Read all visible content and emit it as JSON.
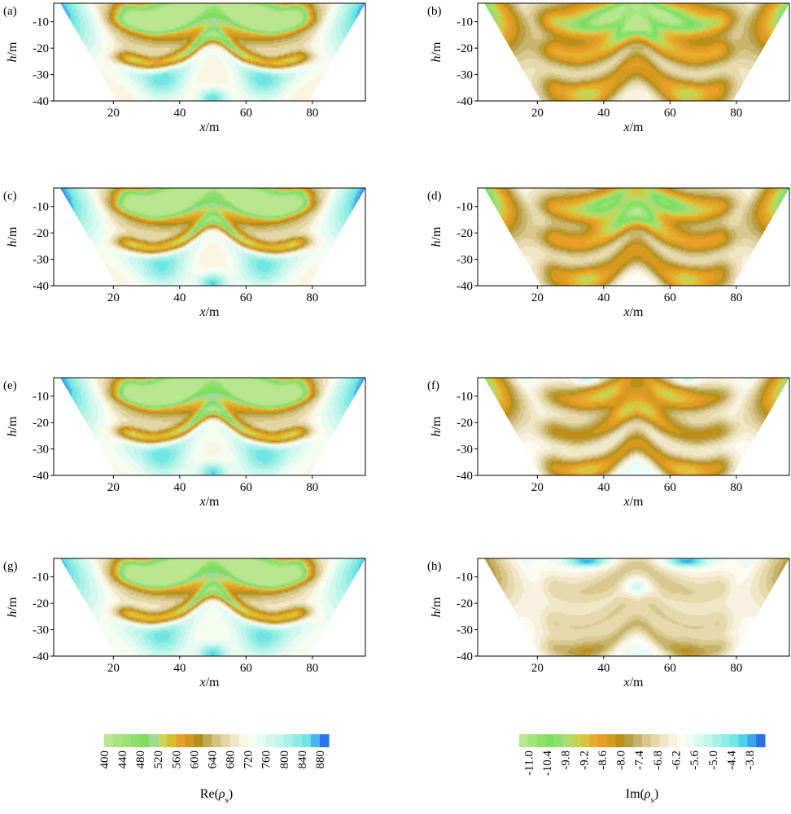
{
  "colors": {
    "re_scale": [
      "#b8e58e",
      "#a8e482",
      "#98e276",
      "#8cdf6a",
      "#7fdd60",
      "#9ed99a",
      "#c9d55e",
      "#d9be2a",
      "#e7a02a",
      "#cf9a1c",
      "#b58f1c",
      "#c2aa54",
      "#d4c27f",
      "#e3d6a4",
      "#f0e7c8",
      "#fbf6e3",
      "#f5fdf0",
      "#e6fbf2",
      "#d2f8ee",
      "#bff5ea",
      "#a8f1e6",
      "#8eece3",
      "#70e5e4",
      "#48b6f2",
      "#2b74ea"
    ],
    "im_scale": [
      "#b9e58f",
      "#a4e47e",
      "#8fe16c",
      "#7ddf5f",
      "#90df72",
      "#b0da6e",
      "#c6d352",
      "#dbc23a",
      "#e2ae2c",
      "#e79d26",
      "#d49a1f",
      "#bd8f18",
      "#b99f44",
      "#c8b36a",
      "#d8c78e",
      "#e5d8ab",
      "#efe6c6",
      "#f8f1df",
      "#fcfbf0",
      "#eafcf3",
      "#d6f9ef",
      "#c1f6ea",
      "#a9f2e6",
      "#8eede3",
      "#6fe6e4",
      "#4ed3ea",
      "#3aa7ec",
      "#2a6fe8"
    ]
  },
  "chart_data": [
    {
      "panel": "(a)",
      "type": "heatmap",
      "quantity": "re",
      "xlabel": "x/m",
      "ylabel": "h/m",
      "xlim": [
        2,
        96
      ],
      "ylim": [
        -40,
        -3
      ],
      "xticks": [
        20,
        40,
        60,
        80
      ],
      "yticks": [
        -10,
        -20,
        -30,
        -40
      ],
      "grid": false,
      "field": {
        "base": 705,
        "edge_value": 880,
        "bands": [
          [
            -205,
            -5,
            2.5
          ],
          [
            -215,
            -9,
            2
          ],
          [
            -35,
            -14,
            3.5
          ],
          [
            -220,
            -23,
            2
          ],
          [
            60,
            -26,
            4
          ]
        ],
        "slab": [
          -185,
          -7,
          13,
          7
        ],
        "pockets": [
          [
            115,
            35,
            -33,
            5,
            5
          ],
          [
            115,
            65,
            -33,
            5,
            5
          ],
          [
            150,
            50,
            -39,
            3,
            2.5
          ]
        ],
        "lobes": [
          [
            -60,
            35,
            -4,
            3.5,
            1.5
          ],
          [
            -60,
            65,
            -4,
            3.5,
            1.5
          ]
        ]
      }
    },
    {
      "panel": "(b)",
      "type": "heatmap",
      "quantity": "im",
      "xlabel": "x/m",
      "ylabel": "h/m",
      "xlim": [
        2,
        96
      ],
      "ylim": [
        -40,
        -3
      ],
      "xticks": [
        20,
        40,
        60,
        80
      ],
      "yticks": [
        -10,
        -20,
        -30,
        -40
      ],
      "grid": false,
      "field": {
        "base": -6.3,
        "edge_value": -10.2,
        "bands": [
          [
            -1.8,
            -9,
            3
          ],
          [
            -2.4,
            -20,
            3.5
          ],
          [
            -1.9,
            -33,
            3
          ],
          [
            -1.2,
            -38,
            2.5
          ]
        ],
        "slab": [
          -3.4,
          -8,
          14,
          6
        ],
        "pockets": [
          [
            -1.2,
            35,
            -38,
            4,
            3
          ],
          [
            -1.2,
            65,
            -38,
            4,
            3
          ]
        ],
        "lobes": [
          [
            -0.8,
            50,
            -4,
            2,
            2
          ]
        ]
      }
    },
    {
      "panel": "(c)",
      "type": "heatmap",
      "quantity": "re",
      "xlabel": "x/m",
      "ylabel": "h/m",
      "xlim": [
        2,
        96
      ],
      "ylim": [
        -40,
        -3
      ],
      "xticks": [
        20,
        40,
        60,
        80
      ],
      "yticks": [
        -10,
        -20,
        -30,
        -40
      ],
      "grid": false,
      "field": {
        "base": 710,
        "edge_value": 890,
        "bands": [
          [
            -210,
            -5,
            2.5
          ],
          [
            -215,
            -9,
            2
          ],
          [
            -35,
            -14,
            3.5
          ],
          [
            -220,
            -23,
            2
          ],
          [
            60,
            -26,
            4
          ]
        ],
        "slab": [
          -190,
          -7,
          13,
          7
        ],
        "pockets": [
          [
            110,
            35,
            -34,
            5,
            5
          ],
          [
            110,
            65,
            -34,
            5,
            5
          ],
          [
            150,
            50,
            -39,
            3,
            2.5
          ]
        ],
        "lobes": [
          [
            -60,
            35,
            -4,
            3.5,
            1.5
          ],
          [
            -60,
            65,
            -4,
            3.5,
            1.5
          ]
        ]
      }
    },
    {
      "panel": "(d)",
      "type": "heatmap",
      "quantity": "im",
      "xlabel": "x/m",
      "ylabel": "h/m",
      "xlim": [
        2,
        96
      ],
      "ylim": [
        -40,
        -3
      ],
      "xticks": [
        20,
        40,
        60,
        80
      ],
      "yticks": [
        -10,
        -20,
        -30,
        -40
      ],
      "grid": false,
      "field": {
        "base": -6.0,
        "edge_value": -10.4,
        "bands": [
          [
            -1.6,
            -9,
            3
          ],
          [
            -2.6,
            -21,
            3.5
          ],
          [
            -2.0,
            -33,
            3
          ],
          [
            -1.4,
            -38,
            2.5
          ]
        ],
        "slab": [
          -3.0,
          -9,
          14,
          6
        ],
        "pockets": [
          [
            -0.8,
            40,
            -16,
            3,
            3
          ],
          [
            -1.2,
            35,
            -38,
            4,
            3
          ],
          [
            -1.2,
            65,
            -38,
            4,
            3
          ]
        ],
        "lobes": [
          [
            0.5,
            35,
            -4,
            3,
            1.5
          ],
          [
            0.5,
            65,
            -4,
            3,
            1.5
          ]
        ]
      }
    },
    {
      "panel": "(e)",
      "type": "heatmap",
      "quantity": "re",
      "xlabel": "x/m",
      "ylabel": "h/m",
      "xlim": [
        2,
        96
      ],
      "ylim": [
        -40,
        -3
      ],
      "xticks": [
        20,
        40,
        60,
        80
      ],
      "yticks": [
        -10,
        -20,
        -30,
        -40
      ],
      "grid": false,
      "field": {
        "base": 715,
        "edge_value": 885,
        "bands": [
          [
            -215,
            -5,
            2.5
          ],
          [
            -215,
            -9,
            2
          ],
          [
            -35,
            -14,
            3.5
          ],
          [
            -215,
            -23,
            2
          ],
          [
            55,
            -27,
            4
          ]
        ],
        "slab": [
          -195,
          -7,
          13,
          7
        ],
        "pockets": [
          [
            105,
            35,
            -34,
            5,
            5
          ],
          [
            105,
            65,
            -34,
            5,
            5
          ],
          [
            145,
            50,
            -39,
            3,
            2.5
          ]
        ],
        "lobes": [
          [
            -60,
            35,
            -4,
            3.5,
            1.5
          ],
          [
            -60,
            65,
            -4,
            3.5,
            1.5
          ]
        ]
      }
    },
    {
      "panel": "(f)",
      "type": "heatmap",
      "quantity": "im",
      "xlabel": "x/m",
      "ylabel": "h/m",
      "xlim": [
        2,
        96
      ],
      "ylim": [
        -40,
        -3
      ],
      "xticks": [
        20,
        40,
        60,
        80
      ],
      "yticks": [
        -10,
        -20,
        -30,
        -40
      ],
      "grid": false,
      "field": {
        "base": -5.6,
        "edge_value": -10.0,
        "bands": [
          [
            -1.4,
            -9,
            3
          ],
          [
            -2.4,
            -22,
            3.5
          ],
          [
            -2.1,
            -34,
            3
          ],
          [
            -1.4,
            -38,
            2.5
          ]
        ],
        "slab": [
          -2.5,
          -10,
          14,
          6
        ],
        "pockets": [
          [
            1.0,
            50,
            -12,
            3,
            2.5
          ],
          [
            -1.0,
            35,
            -38,
            4,
            3
          ],
          [
            -1.0,
            65,
            -38,
            4,
            3
          ]
        ],
        "lobes": [
          [
            1.4,
            35,
            -4,
            3,
            1.5
          ],
          [
            1.4,
            65,
            -4,
            3,
            1.5
          ]
        ]
      }
    },
    {
      "panel": "(g)",
      "type": "heatmap",
      "quantity": "re",
      "xlabel": "x/m",
      "ylabel": "h/m",
      "xlim": [
        2,
        96
      ],
      "ylim": [
        -40,
        -3
      ],
      "xticks": [
        20,
        40,
        60,
        80
      ],
      "yticks": [
        -10,
        -20,
        -30,
        -40
      ],
      "grid": false,
      "field": {
        "base": 720,
        "edge_value": 870,
        "bands": [
          [
            -220,
            -5,
            2.5
          ],
          [
            -210,
            -9,
            2
          ],
          [
            -30,
            -14,
            3.5
          ],
          [
            -210,
            -23,
            2
          ],
          [
            50,
            -27,
            4
          ]
        ],
        "slab": [
          -200,
          -7,
          13,
          7
        ],
        "pockets": [
          [
            100,
            35,
            -34,
            5,
            5
          ],
          [
            100,
            65,
            -34,
            5,
            5
          ],
          [
            140,
            50,
            -39,
            3,
            2.5
          ]
        ],
        "lobes": [
          [
            -60,
            35,
            -4,
            3.5,
            1.5
          ],
          [
            -60,
            65,
            -4,
            3.5,
            1.5
          ]
        ]
      }
    },
    {
      "panel": "(h)",
      "type": "heatmap",
      "quantity": "im",
      "xlabel": "x/m",
      "ylabel": "h/m",
      "xlim": [
        2,
        96
      ],
      "ylim": [
        -40,
        -3
      ],
      "xticks": [
        20,
        40,
        60,
        80
      ],
      "yticks": [
        -10,
        -20,
        -30,
        -40
      ],
      "grid": false,
      "field": {
        "base": -5.8,
        "edge_value": -7.8,
        "bands": [
          [
            -1.0,
            -13,
            4
          ],
          [
            -1.2,
            -26,
            5
          ],
          [
            -1.4,
            -36,
            3
          ]
        ],
        "slab": [
          -0.4,
          -10,
          14,
          6
        ],
        "pockets": [
          [
            1.6,
            50,
            -14,
            3,
            3
          ],
          [
            -0.6,
            35,
            -38,
            4,
            3
          ],
          [
            -0.6,
            65,
            -38,
            4,
            3
          ]
        ],
        "lobes": [
          [
            2.3,
            35,
            -4,
            4,
            1.6
          ],
          [
            2.3,
            65,
            -4,
            4,
            1.6
          ]
        ]
      }
    }
  ],
  "colorbars": [
    {
      "quantity": "re",
      "label": "Re(ρs)",
      "label_main": "Re(",
      "label_symbol": "ρ",
      "label_sub": "s",
      "label_close": ")",
      "range": [
        400,
        900
      ],
      "ticks": [
        "400",
        "440",
        "480",
        "520",
        "560",
        "600",
        "640",
        "680",
        "720",
        "760",
        "800",
        "840",
        "880"
      ]
    },
    {
      "quantity": "im",
      "label": "Im(ρs)",
      "label_main": "Im(",
      "label_symbol": "ρ",
      "label_sub": "s",
      "label_close": ")",
      "range": [
        -11.3,
        -3.3
      ],
      "ticks": [
        "-11.0",
        "-10.4",
        "-9.8",
        "-9.2",
        "-8.6",
        "-8.0",
        "-7.4",
        "-6.8",
        "-6.2",
        "-5.6",
        "-5.0",
        "-4.4",
        "-3.8"
      ]
    }
  ]
}
